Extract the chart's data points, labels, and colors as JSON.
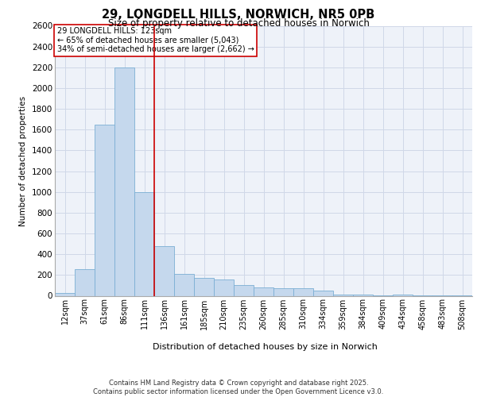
{
  "title_line1": "29, LONGDELL HILLS, NORWICH, NR5 0PB",
  "title_line2": "Size of property relative to detached houses in Norwich",
  "xlabel": "Distribution of detached houses by size in Norwich",
  "ylabel": "Number of detached properties",
  "annotation_line1": "29 LONGDELL HILLS: 123sqm",
  "annotation_line2": "← 65% of detached houses are smaller (5,043)",
  "annotation_line3": "34% of semi-detached houses are larger (2,662) →",
  "footer_line1": "Contains HM Land Registry data © Crown copyright and database right 2025.",
  "footer_line2": "Contains public sector information licensed under the Open Government Licence v3.0.",
  "categories": [
    "12sqm",
    "37sqm",
    "61sqm",
    "86sqm",
    "111sqm",
    "136sqm",
    "161sqm",
    "185sqm",
    "210sqm",
    "235sqm",
    "260sqm",
    "285sqm",
    "310sqm",
    "334sqm",
    "359sqm",
    "384sqm",
    "409sqm",
    "434sqm",
    "458sqm",
    "483sqm",
    "508sqm"
  ],
  "values": [
    30,
    260,
    1650,
    2200,
    1000,
    480,
    210,
    175,
    155,
    100,
    80,
    75,
    70,
    50,
    10,
    10,
    5,
    10,
    5,
    5,
    5
  ],
  "bar_color": "#c5d8ed",
  "bar_edge_color": "#7bafd4",
  "grid_color": "#d0d8e8",
  "background_color": "#eef2f9",
  "vline_color": "#cc0000",
  "annotation_box_color": "#cc0000",
  "ylim": [
    0,
    2600
  ],
  "yticks": [
    0,
    200,
    400,
    600,
    800,
    1000,
    1200,
    1400,
    1600,
    1800,
    2000,
    2200,
    2400,
    2600
  ],
  "vline_x": 4.5
}
